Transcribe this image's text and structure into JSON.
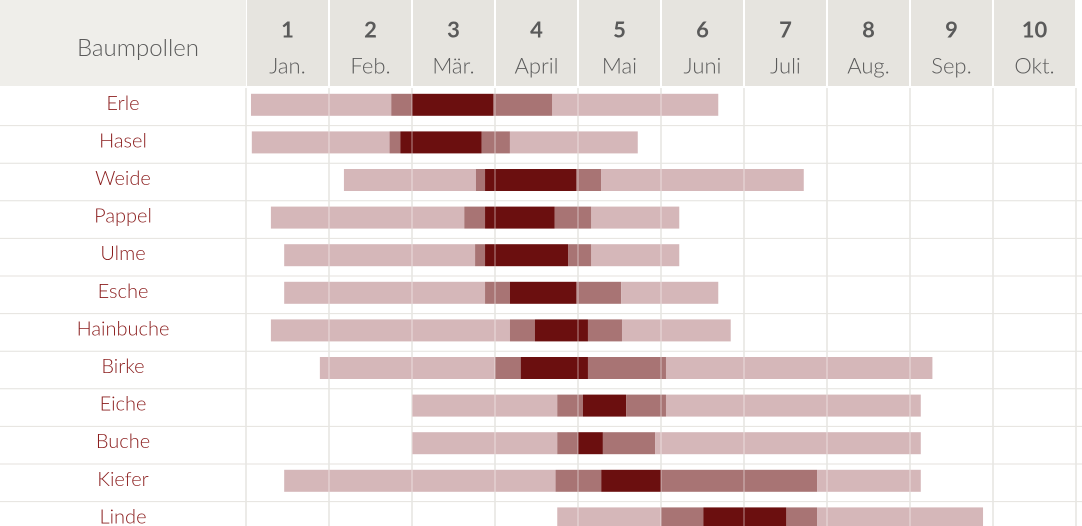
{
  "chart_data": {
    "type": "pollen-calendar",
    "title": "Baumpollen",
    "months": [
      {
        "number": 1,
        "name": "Jan."
      },
      {
        "number": 2,
        "name": "Feb."
      },
      {
        "number": 3,
        "name": "Mär."
      },
      {
        "number": 4,
        "name": "April"
      },
      {
        "number": 5,
        "name": "Mai"
      },
      {
        "number": 6,
        "name": "Juni"
      },
      {
        "number": 7,
        "name": "Juli"
      },
      {
        "number": 8,
        "name": "Aug."
      },
      {
        "number": 9,
        "name": "Sep."
      },
      {
        "number": 10,
        "name": "Okt."
      }
    ],
    "xlim": [
      1,
      11
    ],
    "level_colors": [
      "#d5b7b9",
      "#a87474",
      "#6b0f0f"
    ],
    "rows": [
      {
        "name": "Erle",
        "segments": [
          {
            "start": 1.06,
            "end": 2.75,
            "level": 1
          },
          {
            "start": 2.75,
            "end": 3.0,
            "level": 2
          },
          {
            "start": 3.0,
            "end": 3.98,
            "level": 3
          },
          {
            "start": 3.98,
            "end": 4.69,
            "level": 2
          },
          {
            "start": 4.69,
            "end": 6.69,
            "level": 1
          }
        ]
      },
      {
        "name": "Hasel",
        "segments": [
          {
            "start": 1.07,
            "end": 2.73,
            "level": 1
          },
          {
            "start": 2.73,
            "end": 2.86,
            "level": 2
          },
          {
            "start": 2.86,
            "end": 3.84,
            "level": 3
          },
          {
            "start": 3.84,
            "end": 4.18,
            "level": 2
          },
          {
            "start": 4.18,
            "end": 5.72,
            "level": 1
          }
        ]
      },
      {
        "name": "Weide",
        "segments": [
          {
            "start": 2.18,
            "end": 3.77,
            "level": 1
          },
          {
            "start": 3.77,
            "end": 3.88,
            "level": 2
          },
          {
            "start": 3.88,
            "end": 4.98,
            "level": 3
          },
          {
            "start": 4.98,
            "end": 5.28,
            "level": 2
          },
          {
            "start": 5.28,
            "end": 7.72,
            "level": 1
          }
        ]
      },
      {
        "name": "Pappel",
        "segments": [
          {
            "start": 1.3,
            "end": 3.63,
            "level": 1
          },
          {
            "start": 3.63,
            "end": 3.88,
            "level": 2
          },
          {
            "start": 3.88,
            "end": 4.72,
            "level": 3
          },
          {
            "start": 4.72,
            "end": 5.16,
            "level": 2
          },
          {
            "start": 5.16,
            "end": 6.22,
            "level": 1
          }
        ]
      },
      {
        "name": "Ulme",
        "segments": [
          {
            "start": 1.46,
            "end": 3.76,
            "level": 1
          },
          {
            "start": 3.76,
            "end": 3.88,
            "level": 2
          },
          {
            "start": 3.88,
            "end": 4.88,
            "level": 3
          },
          {
            "start": 4.88,
            "end": 5.16,
            "level": 2
          },
          {
            "start": 5.16,
            "end": 6.22,
            "level": 1
          }
        ]
      },
      {
        "name": "Esche",
        "segments": [
          {
            "start": 1.46,
            "end": 3.88,
            "level": 1
          },
          {
            "start": 3.88,
            "end": 4.18,
            "level": 2
          },
          {
            "start": 4.18,
            "end": 4.98,
            "level": 3
          },
          {
            "start": 4.98,
            "end": 5.52,
            "level": 2
          },
          {
            "start": 5.52,
            "end": 6.69,
            "level": 1
          }
        ]
      },
      {
        "name": "Hainbuche",
        "segments": [
          {
            "start": 1.3,
            "end": 4.18,
            "level": 1
          },
          {
            "start": 4.18,
            "end": 4.48,
            "level": 2
          },
          {
            "start": 4.48,
            "end": 5.12,
            "level": 3
          },
          {
            "start": 5.12,
            "end": 5.53,
            "level": 2
          },
          {
            "start": 5.53,
            "end": 6.84,
            "level": 1
          }
        ]
      },
      {
        "name": "Birke",
        "segments": [
          {
            "start": 1.89,
            "end": 4.0,
            "level": 1
          },
          {
            "start": 4.0,
            "end": 4.31,
            "level": 2
          },
          {
            "start": 4.31,
            "end": 5.12,
            "level": 3
          },
          {
            "start": 5.12,
            "end": 6.06,
            "level": 2
          },
          {
            "start": 6.06,
            "end": 9.27,
            "level": 1
          }
        ]
      },
      {
        "name": "Eiche",
        "segments": [
          {
            "start": 3.0,
            "end": 4.75,
            "level": 1
          },
          {
            "start": 4.75,
            "end": 5.06,
            "level": 2
          },
          {
            "start": 5.06,
            "end": 5.58,
            "level": 3
          },
          {
            "start": 5.58,
            "end": 6.06,
            "level": 2
          },
          {
            "start": 6.06,
            "end": 9.13,
            "level": 1
          }
        ]
      },
      {
        "name": "Buche",
        "segments": [
          {
            "start": 3.0,
            "end": 4.75,
            "level": 1
          },
          {
            "start": 4.75,
            "end": 5.0,
            "level": 2
          },
          {
            "start": 5.0,
            "end": 5.3,
            "level": 3
          },
          {
            "start": 5.3,
            "end": 5.93,
            "level": 2
          },
          {
            "start": 5.93,
            "end": 9.13,
            "level": 1
          }
        ]
      },
      {
        "name": "Kiefer",
        "segments": [
          {
            "start": 1.46,
            "end": 4.73,
            "level": 1
          },
          {
            "start": 4.73,
            "end": 5.28,
            "level": 2
          },
          {
            "start": 5.28,
            "end": 6.0,
            "level": 3
          },
          {
            "start": 6.0,
            "end": 7.88,
            "level": 2
          },
          {
            "start": 7.88,
            "end": 9.13,
            "level": 1
          }
        ]
      },
      {
        "name": "Linde",
        "segments": [
          {
            "start": 4.75,
            "end": 6.0,
            "level": 1
          },
          {
            "start": 6.0,
            "end": 6.51,
            "level": 2
          },
          {
            "start": 6.51,
            "end": 7.51,
            "level": 3
          },
          {
            "start": 7.51,
            "end": 7.88,
            "level": 2
          },
          {
            "start": 7.88,
            "end": 9.88,
            "level": 1
          }
        ]
      }
    ]
  }
}
